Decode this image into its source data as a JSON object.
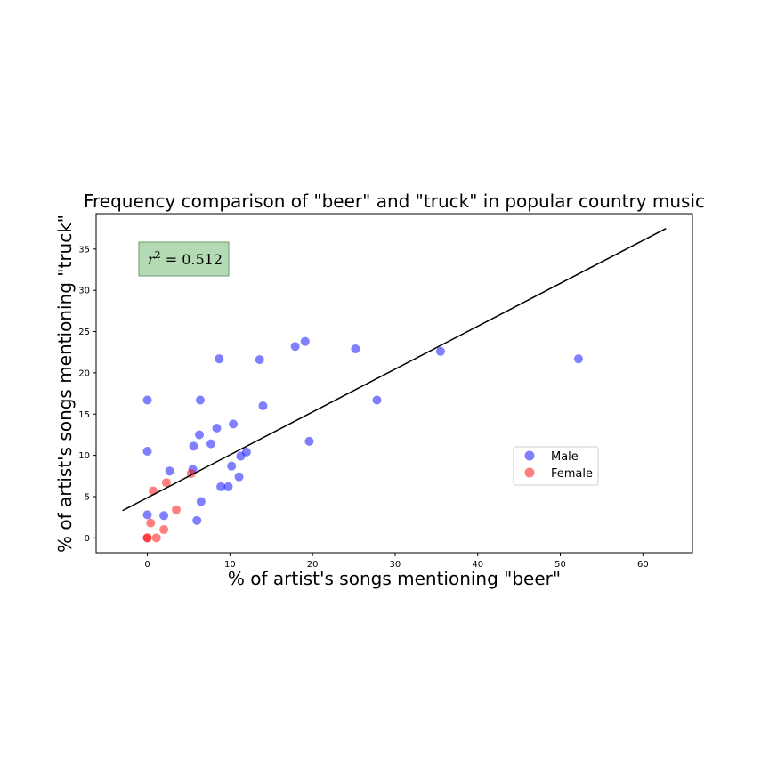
{
  "chart_data": {
    "type": "scatter",
    "title": "Frequency comparison of \"beer\" and \"truck\" in popular country music",
    "xlabel": "% of artist's songs mentioning \"beer\"",
    "ylabel": "% of artist's songs mentioning \"truck\"",
    "xlim": [
      -6.2,
      66
    ],
    "ylim": [
      -1.8,
      39.3
    ],
    "xticks": [
      0,
      10,
      20,
      30,
      40,
      50,
      60
    ],
    "yticks": [
      0,
      5,
      10,
      15,
      20,
      25,
      30,
      35
    ],
    "grid": false,
    "legend_position": "center-right",
    "annotation": {
      "text_prefix": "r",
      "text_sup": "2",
      "text_suffix": " = 0.512",
      "box_color": "#b3dab3"
    },
    "regression_line": {
      "x": [
        -3,
        62.8
      ],
      "y": [
        3.3,
        37.5
      ],
      "color": "#000000"
    },
    "series": [
      {
        "name": "Male",
        "color": "#0000ff",
        "x": [
          0,
          0,
          0,
          2.0,
          2.7,
          5.5,
          5.6,
          6.0,
          6.3,
          6.4,
          6.5,
          7.7,
          8.4,
          8.7,
          8.9,
          9.8,
          10.2,
          10.4,
          11.1,
          11.3,
          12.0,
          13.6,
          14.0,
          17.9,
          19.1,
          19.6,
          25.2,
          27.8,
          35.5,
          52.2
        ],
        "y": [
          16.7,
          10.5,
          2.8,
          2.7,
          8.1,
          8.3,
          11.1,
          2.1,
          12.5,
          16.7,
          4.4,
          11.4,
          13.3,
          21.7,
          6.2,
          6.2,
          8.7,
          13.8,
          7.4,
          9.9,
          10.4,
          21.6,
          16.0,
          23.2,
          23.8,
          11.7,
          22.9,
          16.7,
          22.6,
          21.7
        ]
      },
      {
        "name": "Female",
        "color": "#ff0000",
        "x": [
          0,
          0,
          0.4,
          0.7,
          1.1,
          2.0,
          2.3,
          3.5,
          5.3
        ],
        "y": [
          0,
          0,
          1.8,
          5.7,
          0,
          1.0,
          6.7,
          3.4,
          7.8
        ]
      }
    ]
  }
}
